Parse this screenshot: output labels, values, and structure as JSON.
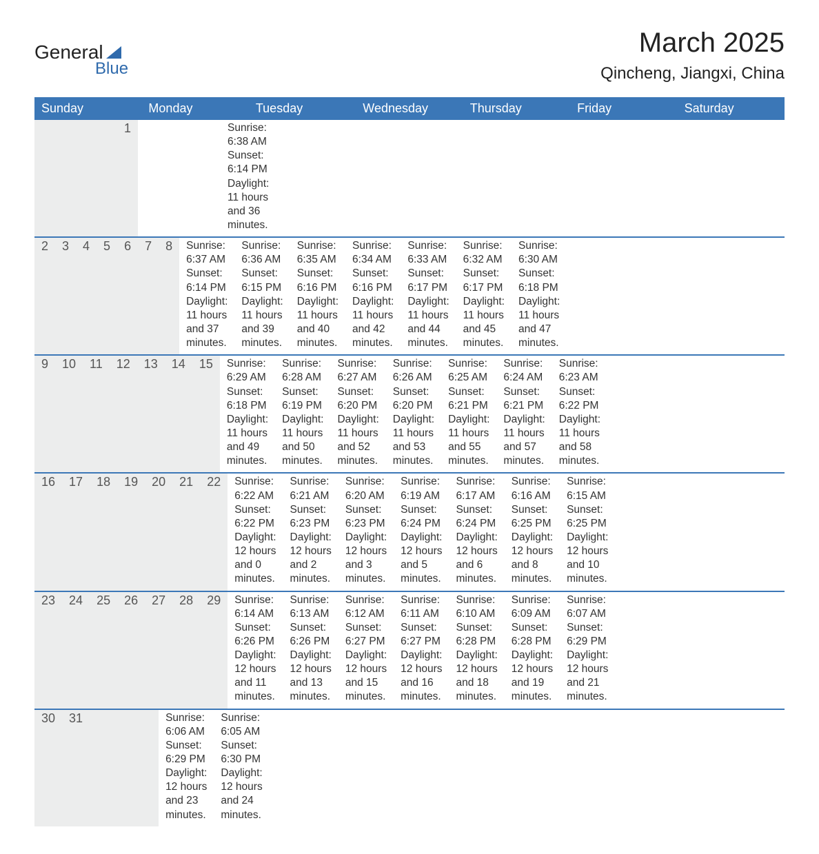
{
  "logo": {
    "text1": "General",
    "text2": "Blue"
  },
  "title": "March 2025",
  "location": "Qincheng, Jiangxi, China",
  "colors": {
    "header_bg": "#3b77b7",
    "header_text": "#ffffff",
    "daynum_bg": "#eceded",
    "row_border": "#3b77b7",
    "logo_accent": "#2f6aac"
  },
  "typography": {
    "title_fontsize": 40,
    "location_fontsize": 24,
    "weekday_fontsize": 18,
    "daynum_fontsize": 18,
    "cell_fontsize": 15.5
  },
  "weekdays": [
    "Sunday",
    "Monday",
    "Tuesday",
    "Wednesday",
    "Thursday",
    "Friday",
    "Saturday"
  ],
  "labels": {
    "sunrise": "Sunrise:",
    "sunset": "Sunset:",
    "daylight": "Daylight:"
  },
  "weeks": [
    [
      null,
      null,
      null,
      null,
      null,
      null,
      {
        "d": "1",
        "sr": "6:38 AM",
        "ss": "6:14 PM",
        "dl": "11 hours and 36 minutes."
      }
    ],
    [
      {
        "d": "2",
        "sr": "6:37 AM",
        "ss": "6:14 PM",
        "dl": "11 hours and 37 minutes."
      },
      {
        "d": "3",
        "sr": "6:36 AM",
        "ss": "6:15 PM",
        "dl": "11 hours and 39 minutes."
      },
      {
        "d": "4",
        "sr": "6:35 AM",
        "ss": "6:16 PM",
        "dl": "11 hours and 40 minutes."
      },
      {
        "d": "5",
        "sr": "6:34 AM",
        "ss": "6:16 PM",
        "dl": "11 hours and 42 minutes."
      },
      {
        "d": "6",
        "sr": "6:33 AM",
        "ss": "6:17 PM",
        "dl": "11 hours and 44 minutes."
      },
      {
        "d": "7",
        "sr": "6:32 AM",
        "ss": "6:17 PM",
        "dl": "11 hours and 45 minutes."
      },
      {
        "d": "8",
        "sr": "6:30 AM",
        "ss": "6:18 PM",
        "dl": "11 hours and 47 minutes."
      }
    ],
    [
      {
        "d": "9",
        "sr": "6:29 AM",
        "ss": "6:18 PM",
        "dl": "11 hours and 49 minutes."
      },
      {
        "d": "10",
        "sr": "6:28 AM",
        "ss": "6:19 PM",
        "dl": "11 hours and 50 minutes."
      },
      {
        "d": "11",
        "sr": "6:27 AM",
        "ss": "6:20 PM",
        "dl": "11 hours and 52 minutes."
      },
      {
        "d": "12",
        "sr": "6:26 AM",
        "ss": "6:20 PM",
        "dl": "11 hours and 53 minutes."
      },
      {
        "d": "13",
        "sr": "6:25 AM",
        "ss": "6:21 PM",
        "dl": "11 hours and 55 minutes."
      },
      {
        "d": "14",
        "sr": "6:24 AM",
        "ss": "6:21 PM",
        "dl": "11 hours and 57 minutes."
      },
      {
        "d": "15",
        "sr": "6:23 AM",
        "ss": "6:22 PM",
        "dl": "11 hours and 58 minutes."
      }
    ],
    [
      {
        "d": "16",
        "sr": "6:22 AM",
        "ss": "6:22 PM",
        "dl": "12 hours and 0 minutes."
      },
      {
        "d": "17",
        "sr": "6:21 AM",
        "ss": "6:23 PM",
        "dl": "12 hours and 2 minutes."
      },
      {
        "d": "18",
        "sr": "6:20 AM",
        "ss": "6:23 PM",
        "dl": "12 hours and 3 minutes."
      },
      {
        "d": "19",
        "sr": "6:19 AM",
        "ss": "6:24 PM",
        "dl": "12 hours and 5 minutes."
      },
      {
        "d": "20",
        "sr": "6:17 AM",
        "ss": "6:24 PM",
        "dl": "12 hours and 6 minutes."
      },
      {
        "d": "21",
        "sr": "6:16 AM",
        "ss": "6:25 PM",
        "dl": "12 hours and 8 minutes."
      },
      {
        "d": "22",
        "sr": "6:15 AM",
        "ss": "6:25 PM",
        "dl": "12 hours and 10 minutes."
      }
    ],
    [
      {
        "d": "23",
        "sr": "6:14 AM",
        "ss": "6:26 PM",
        "dl": "12 hours and 11 minutes."
      },
      {
        "d": "24",
        "sr": "6:13 AM",
        "ss": "6:26 PM",
        "dl": "12 hours and 13 minutes."
      },
      {
        "d": "25",
        "sr": "6:12 AM",
        "ss": "6:27 PM",
        "dl": "12 hours and 15 minutes."
      },
      {
        "d": "26",
        "sr": "6:11 AM",
        "ss": "6:27 PM",
        "dl": "12 hours and 16 minutes."
      },
      {
        "d": "27",
        "sr": "6:10 AM",
        "ss": "6:28 PM",
        "dl": "12 hours and 18 minutes."
      },
      {
        "d": "28",
        "sr": "6:09 AM",
        "ss": "6:28 PM",
        "dl": "12 hours and 19 minutes."
      },
      {
        "d": "29",
        "sr": "6:07 AM",
        "ss": "6:29 PM",
        "dl": "12 hours and 21 minutes."
      }
    ],
    [
      {
        "d": "30",
        "sr": "6:06 AM",
        "ss": "6:29 PM",
        "dl": "12 hours and 23 minutes."
      },
      {
        "d": "31",
        "sr": "6:05 AM",
        "ss": "6:30 PM",
        "dl": "12 hours and 24 minutes."
      },
      null,
      null,
      null,
      null,
      null
    ]
  ]
}
